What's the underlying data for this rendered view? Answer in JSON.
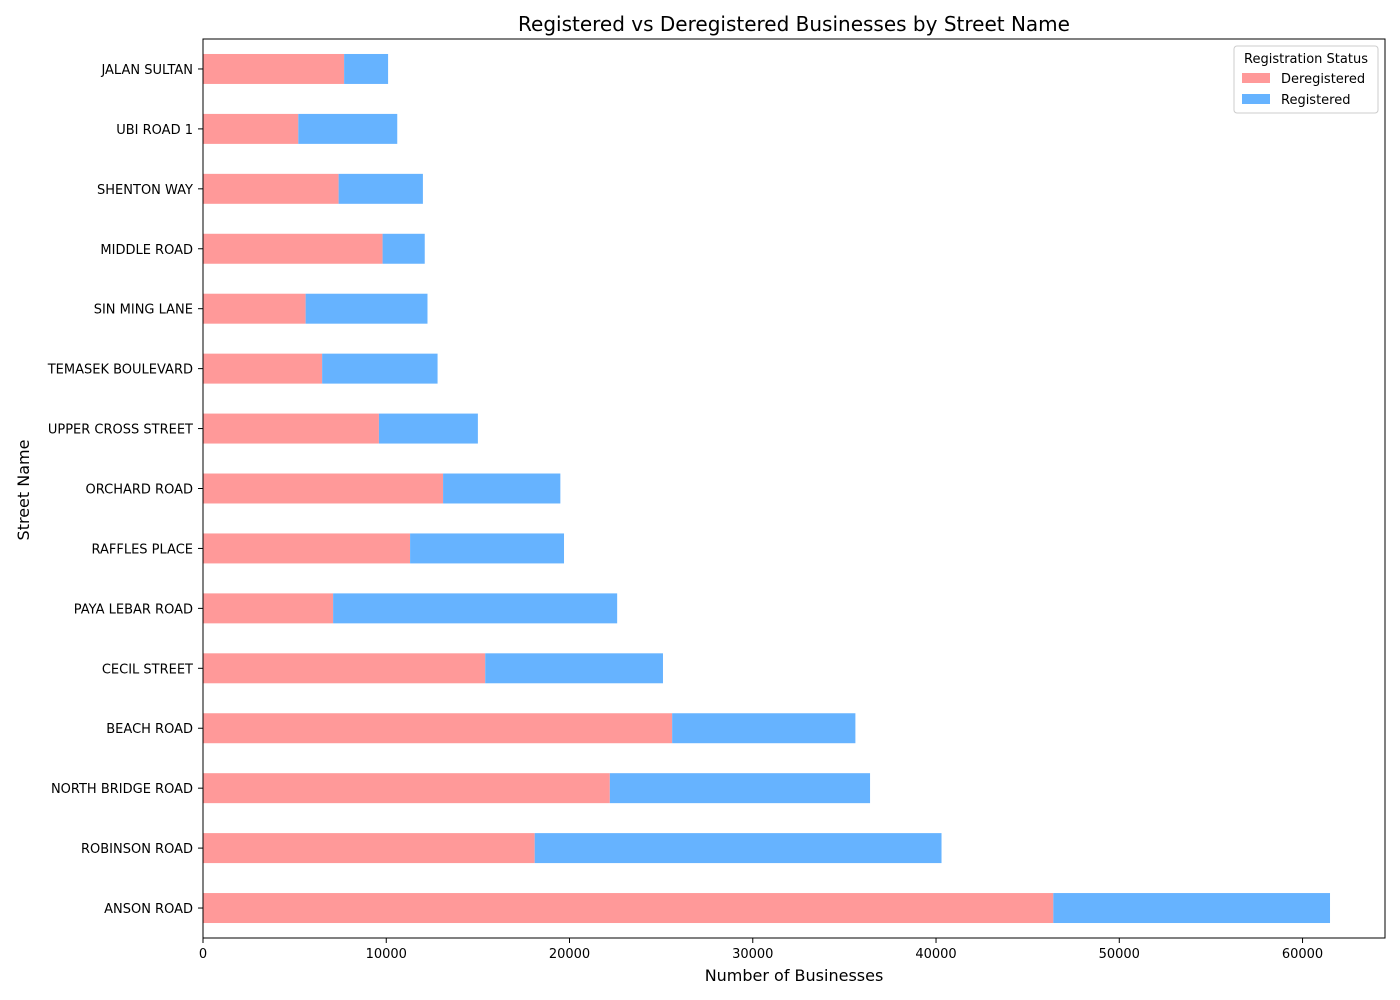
{
  "chart_data": {
    "type": "bar",
    "orientation": "horizontal",
    "stacked": true,
    "title": "Registered vs Deregistered Businesses by Street Name",
    "xlabel": "Number of Businesses",
    "ylabel": "Street Name",
    "xlim": [
      0,
      64500
    ],
    "x_ticks": [
      0,
      10000,
      20000,
      30000,
      40000,
      50000,
      60000
    ],
    "grid": false,
    "legend": {
      "title": "Registration Status",
      "position": "top-right"
    },
    "categories": [
      "ANSON ROAD",
      "ROBINSON ROAD",
      "NORTH BRIDGE ROAD",
      "BEACH ROAD",
      "CECIL STREET",
      "PAYA LEBAR ROAD",
      "RAFFLES PLACE",
      "ORCHARD ROAD",
      "UPPER CROSS STREET",
      "TEMASEK BOULEVARD",
      "SIN MING LANE",
      "MIDDLE ROAD",
      "SHENTON WAY",
      "UBI ROAD 1",
      "JALAN SULTAN"
    ],
    "series": [
      {
        "name": "Deregistered",
        "color": "#ff9999",
        "values": [
          46400,
          18100,
          22200,
          25600,
          15400,
          7100,
          11300,
          13100,
          9600,
          6500,
          5600,
          9800,
          7400,
          5200,
          7700
        ]
      },
      {
        "name": "Registered",
        "color": "#66b3ff",
        "values": [
          15100,
          22200,
          14200,
          10000,
          9700,
          15500,
          8400,
          6400,
          5400,
          6300,
          6650,
          2300,
          4600,
          5400,
          2400
        ]
      }
    ]
  }
}
